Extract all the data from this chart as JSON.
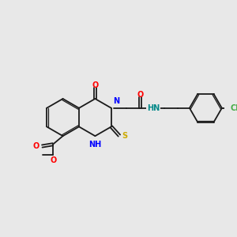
{
  "bg_color": "#e8e8e8",
  "bond_color": "#1a1a1a",
  "bond_lw": 1.3,
  "dbl_off": 0.06,
  "atom_colors": {
    "O": "#ff0000",
    "N": "#0000ff",
    "S": "#ccaa00",
    "Cl": "#44aa44",
    "H": "#008888"
  },
  "fs": 7.0,
  "BCX": 2.75,
  "BCY": 5.1,
  "BR": 0.85,
  "PR": 0.72
}
